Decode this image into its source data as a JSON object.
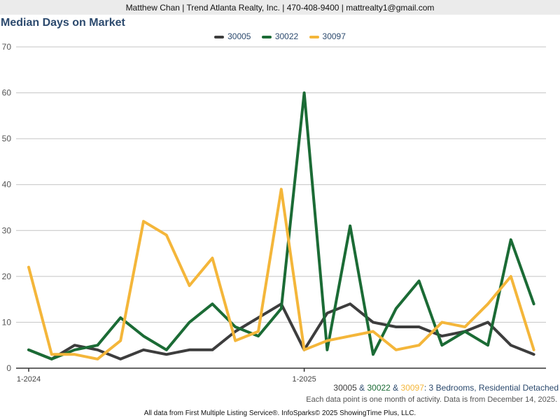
{
  "header": {
    "contact": "Matthew Chan | Trend Atlanta Realty, Inc. | 470-408-9400 | mattrealty1@gmail.com"
  },
  "footer": {
    "note": "Each data point is one month of activity. Data is from December 14, 2025.",
    "source": "All data from First Multiple Listing Service®. InfoSparks© 2025 ShowingTime Plus, LLC."
  },
  "caption": {
    "s1": "30005",
    "sep1": " & ",
    "s2": "30022",
    "sep2": " & ",
    "s3": "30097",
    "rest": ": 3 Bedrooms, Residential Detached"
  },
  "colors": {
    "s1": "#3d3d3d",
    "s2": "#1b6b35",
    "s3": "#f4b63a",
    "title": "#2c4a6e",
    "grid": "#c4c4c4"
  },
  "chart_data": {
    "type": "line",
    "title": "Median Days on Market",
    "x_labels": [
      "1-2024",
      "1-2025"
    ],
    "x_label_index": [
      0,
      12
    ],
    "ylim": [
      0,
      70
    ],
    "yticks": [
      0,
      10,
      20,
      30,
      40,
      50,
      60,
      70
    ],
    "grid": true,
    "legend_position": "top-center",
    "series": [
      {
        "name": "30005",
        "color": "#3d3d3d",
        "values": [
          4,
          2,
          5,
          4,
          2,
          4,
          3,
          4,
          4,
          8,
          11,
          14,
          4,
          12,
          14,
          10,
          9,
          9,
          7,
          8,
          10,
          5,
          3
        ]
      },
      {
        "name": "30022",
        "color": "#1b6b35",
        "values": [
          4,
          2,
          4,
          5,
          11,
          7,
          4,
          10,
          14,
          9,
          7,
          13,
          60,
          4,
          31,
          3,
          13,
          19,
          5,
          8,
          5,
          28,
          14
        ]
      },
      {
        "name": "30097",
        "color": "#f4b63a",
        "values": [
          22,
          3,
          3,
          2,
          6,
          32,
          29,
          18,
          24,
          6,
          8,
          39,
          4,
          6,
          7,
          8,
          4,
          5,
          10,
          9,
          14,
          20,
          4
        ]
      }
    ]
  }
}
